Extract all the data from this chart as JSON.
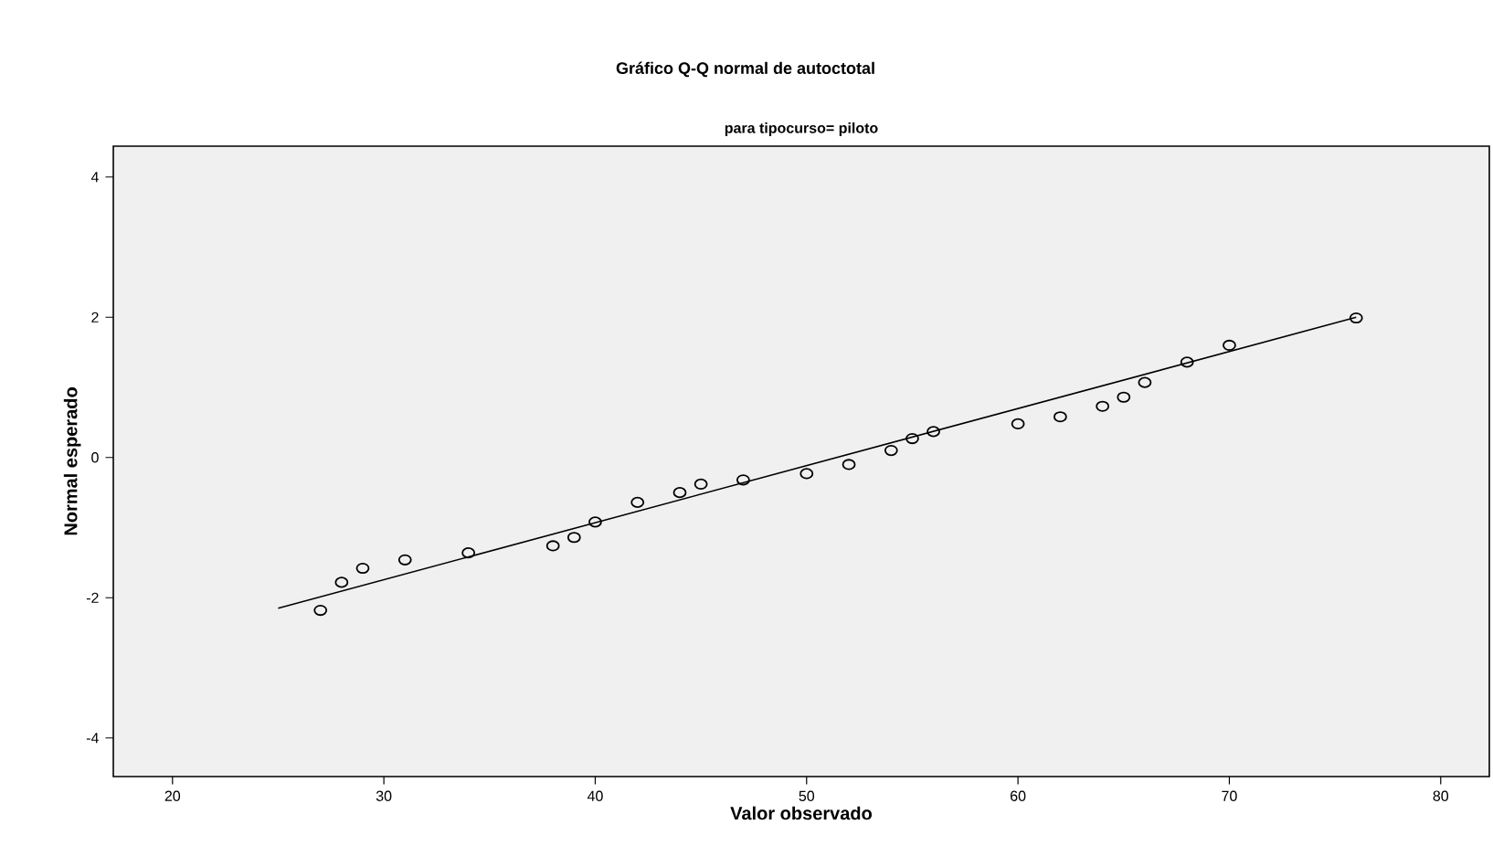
{
  "chart_data": {
    "type": "scatter",
    "title": "Gráfico Q-Q normal de autoctotal",
    "subtitle": "para tipocurso= piloto",
    "xlabel": "Valor observado",
    "ylabel": "Normal esperado",
    "xlim": [
      17.2,
      82.3
    ],
    "ylim": [
      -4.55,
      4.44
    ],
    "xticks": [
      20,
      30,
      40,
      50,
      60,
      70,
      80
    ],
    "yticks": [
      -4,
      -2,
      0,
      2,
      4
    ],
    "grid": false,
    "series": [
      {
        "marker": "circle",
        "color": "#000000",
        "x": [
          27,
          28,
          29,
          31,
          34,
          38,
          39,
          40,
          42,
          44,
          45,
          47,
          50,
          52,
          54,
          55,
          56,
          60,
          62,
          64,
          65,
          66,
          68,
          70,
          76
        ],
        "values": [
          -2.18,
          -1.78,
          -1.58,
          -1.46,
          -1.36,
          -1.26,
          -1.14,
          -0.92,
          -0.64,
          -0.5,
          -0.38,
          -0.32,
          -0.23,
          -0.1,
          0.1,
          0.27,
          0.37,
          0.48,
          0.58,
          0.73,
          0.86,
          1.07,
          1.36,
          1.6,
          1.99
        ]
      },
      {
        "type": "line",
        "marker": "none",
        "color": "#000000",
        "x": [
          25,
          76
        ],
        "values": [
          -2.15,
          2.0
        ]
      }
    ]
  }
}
